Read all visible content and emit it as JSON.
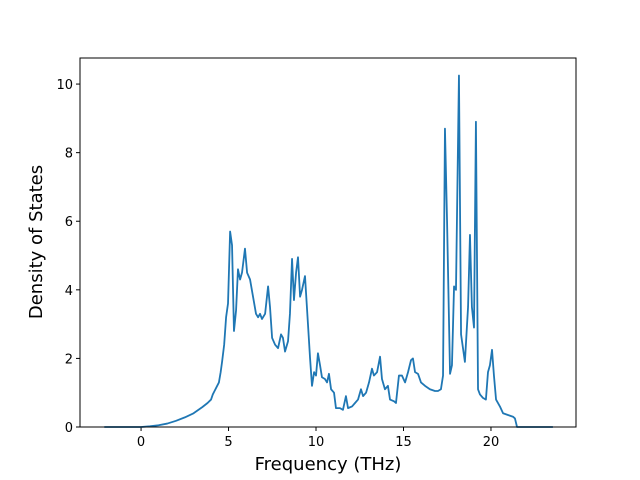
{
  "chart_data": {
    "type": "line",
    "x_label": "Frequency (THz)",
    "y_label": "Density of States",
    "xlim": [
      -3.49,
      24.86
    ],
    "ylim": [
      0,
      10.76
    ],
    "xticks": [
      0,
      5,
      10,
      15,
      20
    ],
    "yticks": [
      0,
      2,
      4,
      6,
      8,
      10
    ],
    "series": [
      {
        "color": "#1f77b4",
        "x": [
          -2.1,
          -1,
          0,
          0.5,
          1,
          1.5,
          2,
          2.5,
          3,
          3.5,
          3.8,
          4,
          4.1,
          4.2,
          4.3,
          4.45,
          4.55,
          4.63,
          4.75,
          4.86,
          4.97,
          5.09,
          5.2,
          5.31,
          5.43,
          5.54,
          5.66,
          5.77,
          5.94,
          6.06,
          6.23,
          6.4,
          6.57,
          6.69,
          6.8,
          6.91,
          7.09,
          7.26,
          7.37,
          7.49,
          7.66,
          7.83,
          8.0,
          8.11,
          8.23,
          8.4,
          8.51,
          8.63,
          8.74,
          8.86,
          8.97,
          9.09,
          9.2,
          9.37,
          9.54,
          9.66,
          9.77,
          9.89,
          10.0,
          10.11,
          10.23,
          10.34,
          10.51,
          10.63,
          10.74,
          10.86,
          11.03,
          11.14,
          11.37,
          11.54,
          11.71,
          11.83,
          12.06,
          12.23,
          12.4,
          12.57,
          12.69,
          12.86,
          13.03,
          13.2,
          13.31,
          13.49,
          13.66,
          13.77,
          13.94,
          14.11,
          14.23,
          14.46,
          14.57,
          14.74,
          14.91,
          15.09,
          15.26,
          15.43,
          15.54,
          15.66,
          15.83,
          16.0,
          16.23,
          16.51,
          16.8,
          16.97,
          17.14,
          17.26,
          17.37,
          17.49,
          17.66,
          17.77,
          17.89,
          18.0,
          18.17,
          18.29,
          18.4,
          18.51,
          18.69,
          18.8,
          18.91,
          19.03,
          19.14,
          19.26,
          19.37,
          19.54,
          19.71,
          19.83,
          19.94,
          20.06,
          20.17,
          20.29,
          20.51,
          20.69,
          20.97,
          21.26,
          21.37,
          21.49,
          22.23,
          23.54
        ],
        "values": [
          0,
          0,
          0,
          0.02,
          0.05,
          0.1,
          0.18,
          0.28,
          0.4,
          0.58,
          0.7,
          0.8,
          0.95,
          1.05,
          1.15,
          1.3,
          1.6,
          1.9,
          2.4,
          3.2,
          3.6,
          5.7,
          5.3,
          2.8,
          3.4,
          4.6,
          4.3,
          4.5,
          5.2,
          4.5,
          4.3,
          3.8,
          3.3,
          3.2,
          3.3,
          3.15,
          3.3,
          4.1,
          3.5,
          2.6,
          2.4,
          2.3,
          2.7,
          2.6,
          2.2,
          2.5,
          3.3,
          4.9,
          3.7,
          4.5,
          4.95,
          3.8,
          4.0,
          4.4,
          3.0,
          2.0,
          1.2,
          1.6,
          1.5,
          2.15,
          1.8,
          1.45,
          1.4,
          1.3,
          1.55,
          1.1,
          1.0,
          0.55,
          0.55,
          0.5,
          0.9,
          0.55,
          0.6,
          0.7,
          0.8,
          1.1,
          0.9,
          1.0,
          1.3,
          1.7,
          1.5,
          1.6,
          2.05,
          1.4,
          1.1,
          1.2,
          0.8,
          0.75,
          0.7,
          1.5,
          1.5,
          1.3,
          1.6,
          1.95,
          2.0,
          1.6,
          1.55,
          1.3,
          1.2,
          1.1,
          1.05,
          1.05,
          1.1,
          1.5,
          8.7,
          6.0,
          1.55,
          1.8,
          4.1,
          4.0,
          10.25,
          2.7,
          2.3,
          1.9,
          3.5,
          5.6,
          3.5,
          2.9,
          8.9,
          1.1,
          0.95,
          0.85,
          0.8,
          1.6,
          1.8,
          2.25,
          1.5,
          0.8,
          0.6,
          0.4,
          0.35,
          0.3,
          0.25,
          0,
          0,
          0
        ]
      }
    ]
  }
}
